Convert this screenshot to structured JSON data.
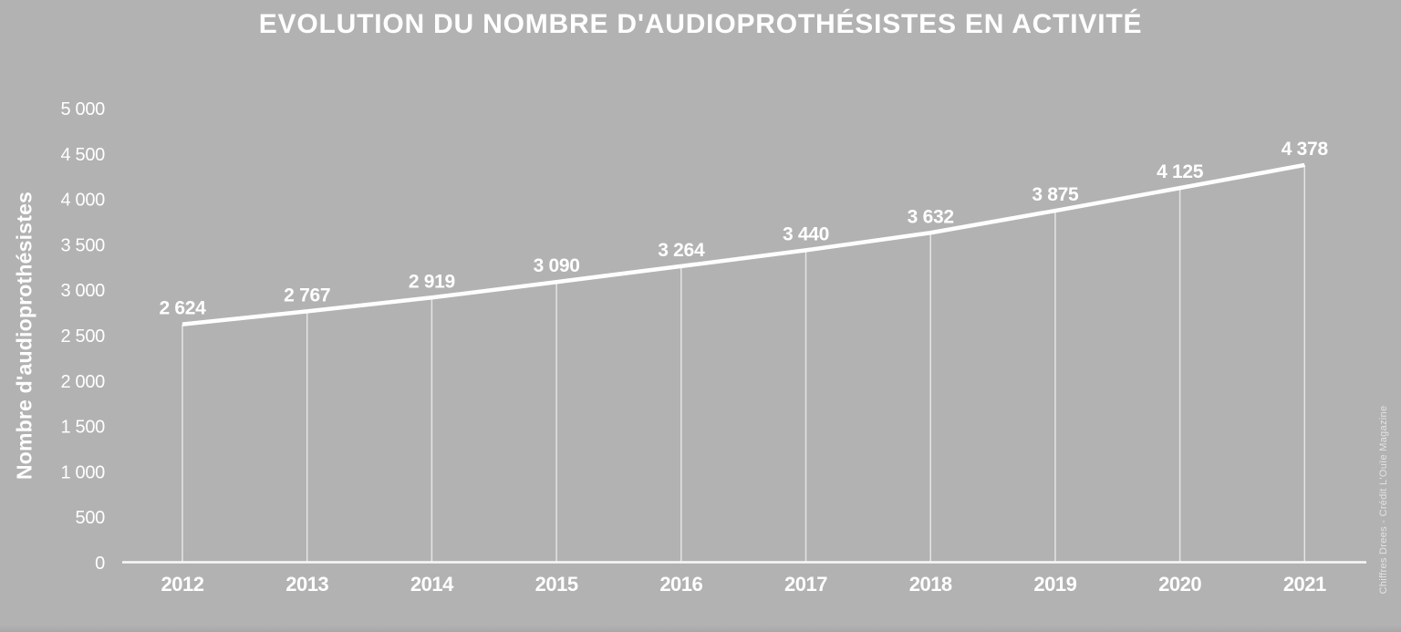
{
  "title": "EVOLUTION DU NOMBRE D'AUDIOPROTHÉSISTES EN ACTIVITÉ",
  "credit": "Chiffres Drees - Crédit L'Ouïe Magazine",
  "chart_data": {
    "type": "line",
    "title": "EVOLUTION DU NOMBRE D'AUDIOPROTHÉSISTES EN ACTIVITÉ",
    "xlabel": "",
    "ylabel": "Nombre d'audioprothésistes",
    "categories": [
      "2012",
      "2013",
      "2014",
      "2015",
      "2016",
      "2017",
      "2018",
      "2019",
      "2020",
      "2021"
    ],
    "values": [
      2624,
      2767,
      2919,
      3090,
      3264,
      3440,
      3632,
      3875,
      4125,
      4378
    ],
    "value_labels": [
      "2 624",
      "2 767",
      "2 919",
      "3 090",
      "3 264",
      "3 440",
      "3 632",
      "3 875",
      "4 125",
      "4 378"
    ],
    "ylim": [
      0,
      5000
    ],
    "ytick_step": 500,
    "ytick_labels_top_to_bottom": [
      "5 000",
      "4 500",
      "4 000",
      "3 500",
      "3 000",
      "2 500",
      "2 000",
      "1 500",
      "1 000",
      "500",
      "0"
    ],
    "grid": false,
    "legend": "none",
    "drop_lines": true,
    "colors": {
      "background": "#b2b2b2",
      "line": "#ffffff",
      "text": "#ffffff",
      "credit_text": "#e2e2e2"
    }
  }
}
